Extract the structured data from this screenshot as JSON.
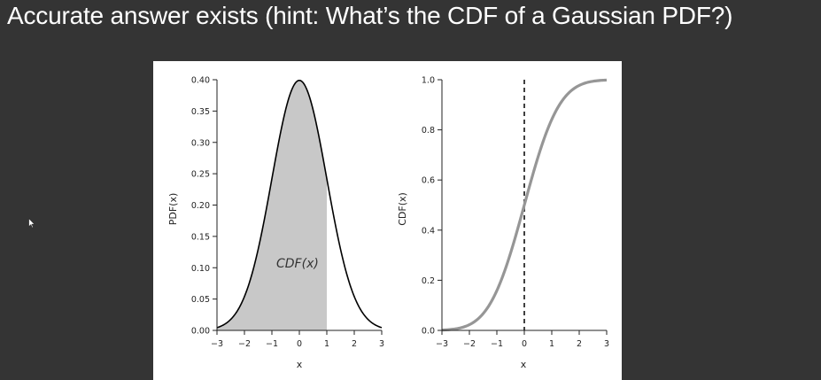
{
  "slide": {
    "title": "Accurate answer exists (hint: What’s the CDF of a Gaussian PDF?)"
  },
  "colors": {
    "background": "#343434",
    "title_text": "#ffffff",
    "figure_bg": "#ffffff",
    "pdf_fill": "#c8c8c8",
    "pdf_line": "#000000",
    "cdf_line": "#969696",
    "axis": "#222222"
  },
  "icons": {
    "cursor": "mouse-pointer-icon"
  },
  "chart_data": [
    {
      "type": "area",
      "ylabel": "PDF(x)",
      "xlabel": "x",
      "xlim": [
        -3,
        3
      ],
      "ylim": [
        0,
        0.4
      ],
      "x_ticks": [
        -3,
        -2,
        -1,
        0,
        1,
        2,
        3
      ],
      "x_tick_labels": [
        "−3",
        "−2",
        "−1",
        "0",
        "1",
        "2",
        "3"
      ],
      "y_ticks": [
        0.0,
        0.05,
        0.1,
        0.15,
        0.2,
        0.25,
        0.3,
        0.35,
        0.4
      ],
      "y_tick_labels": [
        "0.00",
        "0.05",
        "0.10",
        "0.15",
        "0.20",
        "0.25",
        "0.30",
        "0.35",
        "0.40"
      ],
      "curve": "standard normal density",
      "x": [
        -3,
        -2.5,
        -2,
        -1.5,
        -1,
        -0.5,
        0,
        0.5,
        1,
        1.5,
        2,
        2.5,
        3
      ],
      "y": [
        0.0044,
        0.0175,
        0.054,
        0.1295,
        0.242,
        0.3521,
        0.3989,
        0.3521,
        0.242,
        0.1295,
        0.054,
        0.0175,
        0.0044
      ],
      "shaded_region": {
        "from": -3,
        "to": 1
      },
      "annotation": "CDF(x)",
      "grid": false
    },
    {
      "type": "line",
      "ylabel": "CDF(x)",
      "xlabel": "x",
      "xlim": [
        -3,
        3
      ],
      "ylim": [
        0,
        1
      ],
      "x_ticks": [
        -3,
        -2,
        -1,
        0,
        1,
        2,
        3
      ],
      "x_tick_labels": [
        "−3",
        "−2",
        "−1",
        "0",
        "1",
        "2",
        "3"
      ],
      "y_ticks": [
        0.0,
        0.2,
        0.4,
        0.6,
        0.8,
        1.0
      ],
      "y_tick_labels": [
        "0.0",
        "0.2",
        "0.4",
        "0.6",
        "0.8",
        "1.0"
      ],
      "curve": "standard normal cumulative distribution",
      "x": [
        -3,
        -2.5,
        -2,
        -1.5,
        -1,
        -0.5,
        0,
        0.5,
        1,
        1.5,
        2,
        2.5,
        3
      ],
      "y": [
        0.0013,
        0.0062,
        0.0228,
        0.0668,
        0.1587,
        0.3085,
        0.5,
        0.6915,
        0.8413,
        0.9332,
        0.9772,
        0.9938,
        0.9987
      ],
      "vertical_reference_line": {
        "x": 0,
        "style": "dashed"
      },
      "grid": false
    }
  ]
}
